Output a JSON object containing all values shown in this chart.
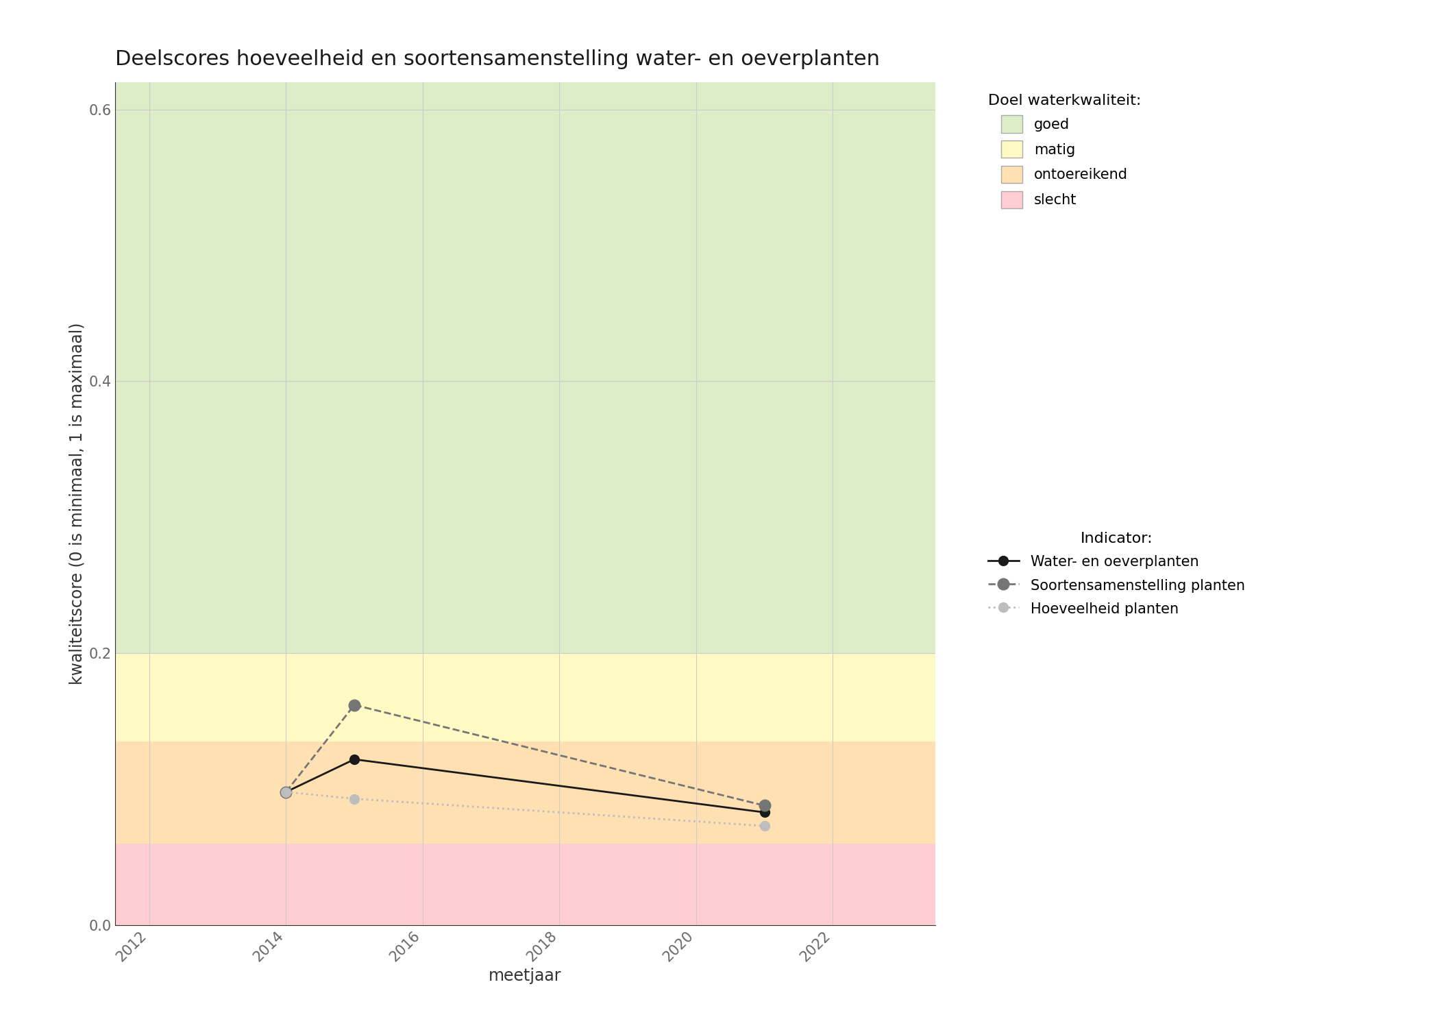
{
  "title": "Deelscores hoeveelheid en soortensamenstelling water- en oeverplanten",
  "xlabel": "meetjaar",
  "ylabel": "kwaliteitscore (0 is minimaal, 1 is maximaal)",
  "xlim": [
    2011.5,
    2023.5
  ],
  "ylim": [
    0.0,
    0.62
  ],
  "xticks": [
    2012,
    2014,
    2016,
    2018,
    2020,
    2022
  ],
  "yticks": [
    0.0,
    0.2,
    0.4,
    0.6
  ],
  "bg_bands": [
    {
      "ymin": 0.0,
      "ymax": 0.06,
      "color": "#FFCDD2",
      "label": "slecht"
    },
    {
      "ymin": 0.06,
      "ymax": 0.135,
      "color": "#FFE0B2",
      "label": "ontoereikend"
    },
    {
      "ymin": 0.135,
      "ymax": 0.2,
      "color": "#FFF9C4",
      "label": "matig"
    },
    {
      "ymin": 0.2,
      "ymax": 0.62,
      "color": "#DCEDC8",
      "label": "goed"
    }
  ],
  "line_water_oever": {
    "x": [
      2014,
      2015,
      2021
    ],
    "y": [
      0.098,
      0.122,
      0.083
    ],
    "color": "#1a1a1a",
    "linestyle": "solid",
    "linewidth": 2.0,
    "markersize": 10,
    "label": "Water- en oeverplanten"
  },
  "line_soortensamenstelling": {
    "x": [
      2014,
      2015,
      2021
    ],
    "y": [
      0.098,
      0.162,
      0.088
    ],
    "color": "#757575",
    "linestyle": "dashed",
    "linewidth": 2.0,
    "markersize": 12,
    "label": "Soortensamenstelling planten"
  },
  "line_hoeveelheid": {
    "x": [
      2014,
      2015,
      2021
    ],
    "y": [
      0.098,
      0.093,
      0.073
    ],
    "color": "#bdbdbd",
    "linestyle": "dotted",
    "linewidth": 2.0,
    "markersize": 10,
    "label": "Hoeveelheid planten"
  },
  "legend_title_quality": "Doel waterkwaliteit:",
  "legend_title_indicator": "Indicator:",
  "background_color": "#ffffff",
  "grid_color": "#cccccc",
  "title_fontsize": 22,
  "axis_label_fontsize": 17,
  "tick_fontsize": 15,
  "legend_fontsize": 15
}
